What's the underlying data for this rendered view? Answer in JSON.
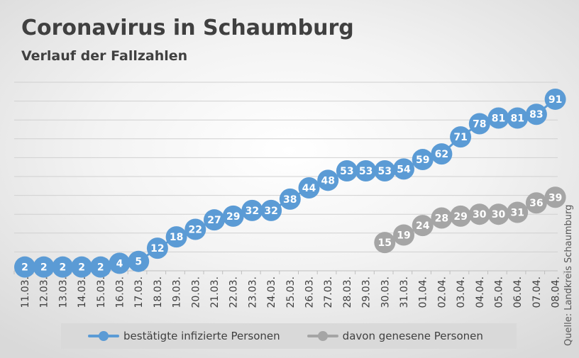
{
  "chart_data": {
    "type": "line",
    "title": "Coronavirus in Schaumburg",
    "subtitle": "Verlauf der Fallzahlen",
    "categories": [
      "11.03.",
      "12.03.",
      "13.03.",
      "14.03.",
      "15.03.",
      "16.03.",
      "17.03.",
      "18.03.",
      "19.03.",
      "20.03.",
      "21.03.",
      "22.03.",
      "23.03.",
      "24.03.",
      "25.03.",
      "26.03.",
      "27.03.",
      "28.03.",
      "29.03.",
      "30.03.",
      "31.03.",
      "01.04.",
      "02.04.",
      "03.04.",
      "04.04.",
      "05.04.",
      "06.04.",
      "07.04.",
      "08.04."
    ],
    "series": [
      {
        "name": "bestätigte infizierte Personen",
        "color": "#5b9bd5",
        "values": [
          2,
          2,
          2,
          2,
          2,
          4,
          5,
          12,
          18,
          22,
          27,
          29,
          32,
          32,
          38,
          44,
          48,
          53,
          53,
          53,
          54,
          59,
          62,
          71,
          78,
          81,
          81,
          83,
          91
        ]
      },
      {
        "name": "davon genesene Personen",
        "color": "#a5a5a5",
        "values": [
          null,
          null,
          null,
          null,
          null,
          null,
          null,
          null,
          null,
          null,
          null,
          null,
          null,
          null,
          null,
          null,
          null,
          null,
          null,
          15,
          19,
          24,
          28,
          29,
          30,
          30,
          31,
          36,
          39
        ]
      }
    ],
    "ylim": [
      0,
      100
    ],
    "gridlines": true,
    "legend_position": "bottom",
    "source": "Quelle: Landkreis Schaumburg"
  }
}
